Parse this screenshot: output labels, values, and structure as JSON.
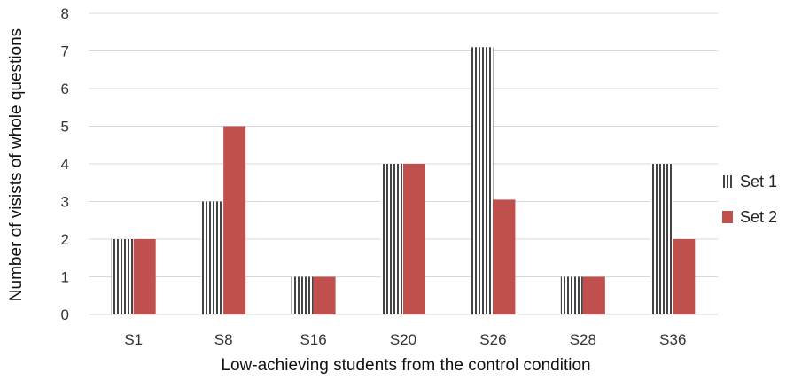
{
  "chart_data": {
    "type": "bar",
    "categories": [
      "S1",
      "S8",
      "S16",
      "S20",
      "S26",
      "S28",
      "S36"
    ],
    "series": [
      {
        "name": "Set 1",
        "values": [
          2,
          3,
          1,
          4,
          7.1,
          1,
          4
        ],
        "color": "#444444",
        "pattern": "vertical-stripes"
      },
      {
        "name": "Set 2",
        "values": [
          2,
          5,
          1,
          4,
          3.05,
          1,
          2
        ],
        "color": "#c0504d"
      }
    ],
    "xlabel": "Low-achieving students from the control condition",
    "ylabel": "Number of visists of whole questions",
    "ylim": [
      0,
      8
    ],
    "yticks": [
      0,
      1,
      2,
      3,
      4,
      5,
      6,
      7,
      8
    ],
    "grid": true,
    "legend": "right"
  }
}
